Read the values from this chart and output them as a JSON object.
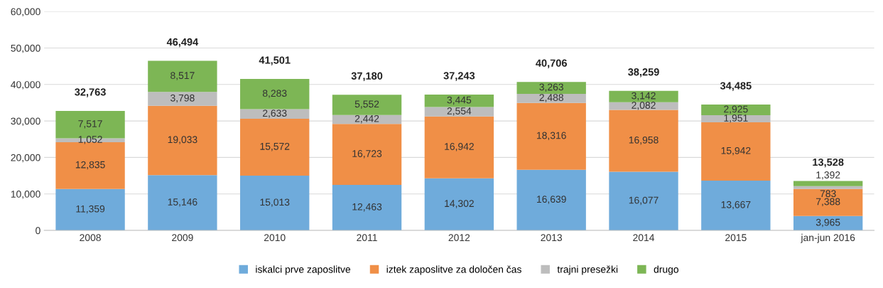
{
  "chart_data": {
    "type": "bar",
    "stacked": true,
    "categories": [
      "2008",
      "2009",
      "2010",
      "2011",
      "2012",
      "2013",
      "2014",
      "2015",
      "jan-jun 2016"
    ],
    "series": [
      {
        "name": "iskalci prve zaposlitve",
        "color": "#6fabdb",
        "values": [
          11359,
          15146,
          15013,
          12463,
          14302,
          16639,
          16077,
          13667,
          3965
        ],
        "value_labels": [
          "11,359",
          "15,146",
          "15,013",
          "12,463",
          "14,302",
          "16,639",
          "16,077",
          "13,667",
          "3,965"
        ]
      },
      {
        "name": "iztek zaposlitve za določen čas",
        "color": "#f08f47",
        "values": [
          12835,
          19033,
          15572,
          16723,
          16942,
          18316,
          16958,
          15942,
          7388
        ],
        "value_labels": [
          "12,835",
          "19,033",
          "15,572",
          "16,723",
          "16,942",
          "18,316",
          "16,958",
          "15,942",
          "7,388"
        ]
      },
      {
        "name": "trajni presežki",
        "color": "#bdbdbd",
        "values": [
          1052,
          3798,
          2633,
          2442,
          2554,
          2488,
          2082,
          1951,
          783
        ],
        "value_labels": [
          "1,052",
          "3,798",
          "2,633",
          "2,442",
          "2,554",
          "2,488",
          "2,082",
          "1,951",
          "783"
        ]
      },
      {
        "name": "drugo",
        "color": "#7db655",
        "values": [
          7517,
          8517,
          8283,
          5552,
          3445,
          3263,
          3142,
          2925,
          1392
        ],
        "value_labels": [
          "7,517",
          "8,517",
          "8,283",
          "5,552",
          "3,445",
          "3,263",
          "3,142",
          "2,925",
          "1,392"
        ]
      }
    ],
    "totals": [
      "32,763",
      "46,494",
      "41,501",
      "37,180",
      "37,243",
      "40,706",
      "38,259",
      "34,485",
      "13,528"
    ],
    "ylim": [
      0,
      60000
    ],
    "yticks": [
      0,
      {
        "value": 10000,
        "label": "10,000"
      },
      {
        "value": 20000,
        "label": "20,000"
      },
      {
        "value": 30000,
        "label": "30,000"
      },
      {
        "value": 40000,
        "label": "40,000"
      },
      {
        "value": 50000,
        "label": "50,000"
      },
      {
        "value": 60000,
        "label": "60,000"
      }
    ],
    "grid": "y",
    "legend": "bottom"
  }
}
